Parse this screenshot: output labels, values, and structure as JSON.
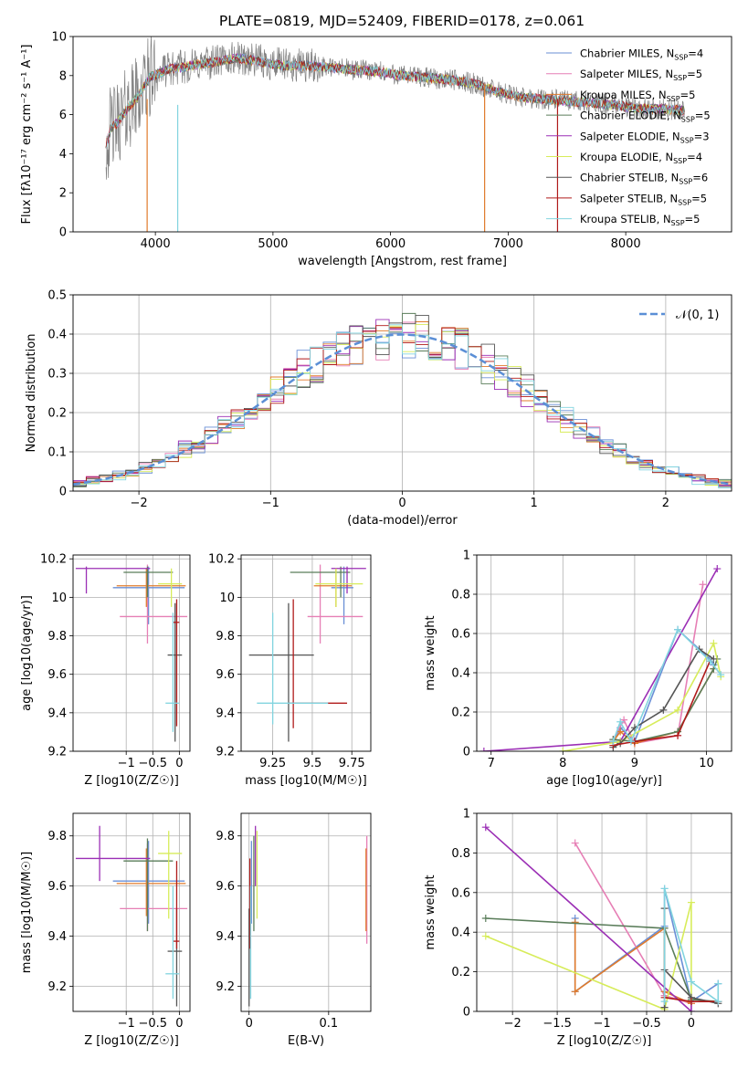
{
  "figure": {
    "title": "PLATE=0819, MJD=52409, FIBERID=0178, z=0.061",
    "series": [
      {
        "name": "Chabrier MILES",
        "nssp": "4",
        "color": "#6a8fd6"
      },
      {
        "name": "Salpeter MILES",
        "nssp": "5",
        "color": "#e67fb5"
      },
      {
        "name": "Kroupa MILES",
        "nssp": "5",
        "color": "#e07b2c"
      },
      {
        "name": "Chabrier ELODIE",
        "nssp": "5",
        "color": "#5a7d5a"
      },
      {
        "name": "Salpeter ELODIE",
        "nssp": "3",
        "color": "#9b2fb5"
      },
      {
        "name": "Kroupa ELODIE",
        "nssp": "4",
        "color": "#d7ec5a"
      },
      {
        "name": "Chabrier STELIB",
        "nssp": "6",
        "color": "#555555"
      },
      {
        "name": "Salpeter STELIB",
        "nssp": "5",
        "color": "#b01a1a"
      },
      {
        "name": "Kroupa STELIB",
        "nssp": "5",
        "color": "#82d4df"
      }
    ],
    "nssp_prefix": "N",
    "nssp_sub": "SSP"
  },
  "chart_data": [
    {
      "id": "spectrum",
      "type": "line",
      "xlabel": "wavelength [Angstrom, rest frame]",
      "ylabel": "Flux [fλ10⁻¹⁷ erg cm⁻² s⁻¹ A⁻¹]",
      "xlim": [
        3300,
        8900
      ],
      "ylim": [
        0,
        10
      ],
      "xticks": [
        4000,
        5000,
        6000,
        7000,
        8000
      ],
      "yticks": [
        0,
        2,
        4,
        6,
        8,
        10
      ],
      "grid": false,
      "legend": "top-right",
      "observed_color": "#808080",
      "data_trend": {
        "x": [
          3580,
          3620,
          3680,
          3750,
          3850,
          3950,
          4100,
          4300,
          4500,
          4700,
          4900,
          5100,
          5300,
          5500,
          5700,
          5900,
          6100,
          6300,
          6500,
          6700,
          6900,
          7100,
          7300,
          7500,
          7700,
          7900,
          8100,
          8300,
          8500
        ],
        "y": [
          4.4,
          5.3,
          5.6,
          6.2,
          6.9,
          7.9,
          8.3,
          8.5,
          8.7,
          8.9,
          8.7,
          8.5,
          8.5,
          8.4,
          8.3,
          8.2,
          8.0,
          7.9,
          7.8,
          7.6,
          7.2,
          6.9,
          6.8,
          6.7,
          6.6,
          6.5,
          6.3,
          6.3,
          6.2
        ]
      },
      "lines": [
        {
          "x": 3930,
          "y0": 0,
          "y1": 6.8,
          "color": "#e07b2c"
        },
        {
          "x": 4190,
          "y0": 0,
          "y1": 6.5,
          "color": "#82d4df"
        },
        {
          "x": 6800,
          "y0": 0,
          "y1": 7.5,
          "color": "#e07b2c"
        },
        {
          "x": 7420,
          "y0": 0,
          "y1": 6.8,
          "color": "#b01a1a"
        }
      ]
    },
    {
      "id": "residuals",
      "type": "histogram",
      "xlabel": "(data-model)/error",
      "ylabel": "Normed distribution",
      "xlim": [
        -2.5,
        2.5
      ],
      "ylim": [
        0,
        0.5
      ],
      "xticks": [
        -2,
        -1,
        0,
        1,
        2
      ],
      "yticks": [
        0.0,
        0.1,
        0.2,
        0.3,
        0.4,
        0.5
      ],
      "grid": true,
      "legend": "top-right",
      "reference_label": "𝒩(0, 1)",
      "reference_color": "#5b8fd6",
      "bin_width": 0.1
    },
    {
      "id": "age-vs-metallicity",
      "type": "errorbar",
      "xlabel": "Z [log10(Z/Z☉)]",
      "ylabel": "age [log10(age/yr)]",
      "xlim": [
        -2.0,
        0.2
      ],
      "ylim": [
        9.2,
        10.22
      ],
      "xticks": [
        -1,
        -0.5,
        0
      ],
      "yticks": [
        9.2,
        9.4,
        9.6,
        9.8,
        10.0,
        10.2
      ],
      "grid": true,
      "points": [
        {
          "series": 0,
          "x": -0.58,
          "xlo": -1.25,
          "xhi": 0.1,
          "y": 10.05,
          "ylo": 9.86,
          "yhi": 10.16
        },
        {
          "series": 1,
          "x": -0.6,
          "xlo": -1.12,
          "xhi": 0.15,
          "y": 9.9,
          "ylo": 9.76,
          "yhi": 10.17
        },
        {
          "series": 2,
          "x": -0.62,
          "xlo": -1.18,
          "xhi": 0.12,
          "y": 10.06,
          "ylo": 9.95,
          "yhi": 10.15
        },
        {
          "series": 3,
          "x": -0.6,
          "xlo": -1.05,
          "xhi": -0.12,
          "y": 10.13,
          "ylo": 10.0,
          "yhi": 10.16
        },
        {
          "series": 4,
          "x": -1.75,
          "xlo": -1.95,
          "xhi": -0.55,
          "y": 10.15,
          "ylo": 10.02,
          "yhi": 10.16
        },
        {
          "series": 5,
          "x": -0.15,
          "xlo": -0.4,
          "xhi": 0.05,
          "y": 10.07,
          "ylo": 9.95,
          "yhi": 10.15
        },
        {
          "series": 6,
          "x": -0.08,
          "xlo": -0.22,
          "xhi": 0.05,
          "y": 9.7,
          "ylo": 9.25,
          "yhi": 9.97
        },
        {
          "series": 7,
          "x": -0.05,
          "xlo": -0.12,
          "xhi": 0.0,
          "y": 9.87,
          "ylo": 9.33,
          "yhi": 9.99
        },
        {
          "series": 8,
          "x": -0.12,
          "xlo": -0.26,
          "xhi": 0.0,
          "y": 9.45,
          "ylo": 9.3,
          "yhi": 9.92
        }
      ]
    },
    {
      "id": "age-vs-mass",
      "type": "errorbar",
      "xlabel": "mass [log10(M/M☉)]",
      "ylabel": "",
      "xlim": [
        9.05,
        9.87
      ],
      "ylim": [
        9.2,
        10.22
      ],
      "xticks": [
        9.25,
        9.5,
        9.75
      ],
      "yticks": [
        9.2,
        9.4,
        9.6,
        9.8,
        10.0,
        10.2
      ],
      "grid": true,
      "points": [
        {
          "series": 0,
          "x": 9.7,
          "xlo": 9.62,
          "xhi": 9.76,
          "y": 10.05,
          "ylo": 9.86,
          "yhi": 10.16
        },
        {
          "series": 1,
          "x": 9.55,
          "xlo": 9.47,
          "xhi": 9.82,
          "y": 9.9,
          "ylo": 9.76,
          "yhi": 10.17
        },
        {
          "series": 2,
          "x": 9.65,
          "xlo": 9.51,
          "xhi": 9.75,
          "y": 10.06,
          "ylo": 9.95,
          "yhi": 10.15
        },
        {
          "series": 3,
          "x": 9.68,
          "xlo": 9.36,
          "xhi": 9.74,
          "y": 10.13,
          "ylo": 10.0,
          "yhi": 10.16
        },
        {
          "series": 4,
          "x": 9.72,
          "xlo": 9.62,
          "xhi": 9.84,
          "y": 10.15,
          "ylo": 10.02,
          "yhi": 10.16
        },
        {
          "series": 5,
          "x": 9.65,
          "xlo": 9.52,
          "xhi": 9.82,
          "y": 10.07,
          "ylo": 9.95,
          "yhi": 10.15
        },
        {
          "series": 6,
          "x": 9.35,
          "xlo": 9.1,
          "xhi": 9.51,
          "y": 9.7,
          "ylo": 9.25,
          "yhi": 9.97
        },
        {
          "series": 7,
          "x": 9.38,
          "xlo": 9.35,
          "xhi": 9.72,
          "y": 9.45,
          "ylo": 9.32,
          "yhi": 9.99
        },
        {
          "series": 8,
          "x": 9.25,
          "xlo": 9.15,
          "xhi": 9.6,
          "y": 9.45,
          "ylo": 9.34,
          "yhi": 9.92
        }
      ]
    },
    {
      "id": "weight-vs-age",
      "type": "line",
      "xlabel": "age [log10(age/yr)]",
      "ylabel": "mass weight",
      "xlim": [
        6.8,
        10.35
      ],
      "ylim": [
        0,
        1
      ],
      "xticks": [
        7,
        8,
        9,
        10
      ],
      "yticks": [
        0.0,
        0.2,
        0.4,
        0.6,
        0.8,
        1.0
      ],
      "grid": true,
      "series": [
        {
          "series": 0,
          "x": [
            8.7,
            8.8,
            9.0,
            9.6,
            10.05,
            10.1
          ],
          "y": [
            0.05,
            0.12,
            0.05,
            0.62,
            0.47,
            0.44
          ]
        },
        {
          "series": 1,
          "x": [
            8.7,
            8.85,
            9.0,
            9.6,
            9.95
          ],
          "y": [
            0.06,
            0.16,
            0.04,
            0.08,
            0.85
          ]
        },
        {
          "series": 2,
          "x": [
            8.7,
            8.8,
            9.0,
            9.6,
            10.1
          ],
          "y": [
            0.05,
            0.1,
            0.04,
            0.1,
            0.42
          ]
        },
        {
          "series": 3,
          "x": [
            8.7,
            9.0,
            9.6,
            10.1,
            10.15
          ],
          "y": [
            0.06,
            0.05,
            0.1,
            0.42,
            0.47
          ]
        },
        {
          "series": 4,
          "x": [
            6.9,
            8.8,
            10.15
          ],
          "y": [
            0.0,
            0.05,
            0.93
          ]
        },
        {
          "series": 5,
          "x": [
            8.0,
            8.8,
            9.6,
            10.1,
            10.2
          ],
          "y": [
            0.0,
            0.05,
            0.21,
            0.55,
            0.38
          ]
        },
        {
          "series": 6,
          "x": [
            8.7,
            8.8,
            9.0,
            9.4,
            9.9,
            10.1
          ],
          "y": [
            0.02,
            0.04,
            0.12,
            0.21,
            0.52,
            0.47
          ]
        },
        {
          "series": 7,
          "x": [
            8.7,
            9.0,
            9.6,
            10.05
          ],
          "y": [
            0.03,
            0.05,
            0.08,
            0.46
          ]
        },
        {
          "series": 8,
          "x": [
            8.7,
            8.8,
            8.95,
            9.6,
            10.05,
            10.2
          ],
          "y": [
            0.05,
            0.15,
            0.05,
            0.62,
            0.46,
            0.39
          ]
        }
      ]
    },
    {
      "id": "mass-vs-metallicity",
      "type": "errorbar",
      "xlabel": "Z [log10(Z/Z☉)]",
      "ylabel": "mass [log10(M/M☉)]",
      "xlim": [
        -2.0,
        0.2
      ],
      "ylim": [
        9.1,
        9.89
      ],
      "xticks": [
        -1,
        -0.5,
        0
      ],
      "yticks": [
        9.2,
        9.4,
        9.6,
        9.8
      ],
      "grid": true,
      "points": [
        {
          "series": 0,
          "x": -0.58,
          "xlo": -1.25,
          "xhi": 0.1,
          "y": 9.62,
          "ylo": 9.45,
          "yhi": 9.78
        },
        {
          "series": 1,
          "x": -0.6,
          "xlo": -1.12,
          "xhi": 0.15,
          "y": 9.51,
          "ylo": 9.42,
          "yhi": 9.77
        },
        {
          "series": 2,
          "x": -0.62,
          "xlo": -1.18,
          "xhi": 0.12,
          "y": 9.61,
          "ylo": 9.48,
          "yhi": 9.75
        },
        {
          "series": 3,
          "x": -0.6,
          "xlo": -1.05,
          "xhi": -0.12,
          "y": 9.7,
          "ylo": 9.42,
          "yhi": 9.79
        },
        {
          "series": 4,
          "x": -1.5,
          "xlo": -1.95,
          "xhi": -0.55,
          "y": 9.71,
          "ylo": 9.62,
          "yhi": 9.84
        },
        {
          "series": 5,
          "x": -0.2,
          "xlo": -0.4,
          "xhi": 0.05,
          "y": 9.73,
          "ylo": 9.47,
          "yhi": 9.82
        },
        {
          "series": 6,
          "x": -0.05,
          "xlo": -0.22,
          "xhi": 0.05,
          "y": 9.34,
          "ylo": 9.12,
          "yhi": 9.51
        },
        {
          "series": 7,
          "x": -0.05,
          "xlo": -0.12,
          "xhi": 0.0,
          "y": 9.38,
          "ylo": 9.35,
          "yhi": 9.7
        },
        {
          "series": 8,
          "x": -0.12,
          "xlo": -0.26,
          "xhi": 0.0,
          "y": 9.25,
          "ylo": 9.15,
          "yhi": 9.6
        }
      ]
    },
    {
      "id": "mass-vs-extinction",
      "type": "errorbar",
      "xlabel": "E(B-V)",
      "ylabel": "",
      "xlim": [
        -0.01,
        0.153
      ],
      "ylim": [
        9.1,
        9.89
      ],
      "xticks": [
        0.0,
        0.1
      ],
      "yticks": [
        9.2,
        9.4,
        9.6,
        9.8
      ],
      "grid": true,
      "points": [
        {
          "series": 0,
          "x": 0.003,
          "xlo": 0.003,
          "xhi": 0.003,
          "y": 9.62,
          "ylo": 9.45,
          "yhi": 9.78
        },
        {
          "series": 1,
          "x": 0.148,
          "xlo": 0.148,
          "xhi": 0.148,
          "y": 9.51,
          "ylo": 9.37,
          "yhi": 9.8
        },
        {
          "series": 2,
          "x": 0.147,
          "xlo": 0.147,
          "xhi": 0.147,
          "y": 9.61,
          "ylo": 9.42,
          "yhi": 9.75
        },
        {
          "series": 3,
          "x": 0.006,
          "xlo": 0.006,
          "xhi": 0.006,
          "y": 9.7,
          "ylo": 9.42,
          "yhi": 9.8
        },
        {
          "series": 4,
          "x": 0.008,
          "xlo": 0.008,
          "xhi": 0.008,
          "y": 9.71,
          "ylo": 9.6,
          "yhi": 9.84
        },
        {
          "series": 5,
          "x": 0.01,
          "xlo": 0.01,
          "xhi": 0.01,
          "y": 9.73,
          "ylo": 9.47,
          "yhi": 9.82
        },
        {
          "series": 6,
          "x": 0.0,
          "xlo": 0.0,
          "xhi": 0.0,
          "y": 9.34,
          "ylo": 9.12,
          "yhi": 9.51
        },
        {
          "series": 7,
          "x": 0.001,
          "xlo": 0.001,
          "xhi": 0.001,
          "y": 9.55,
          "ylo": 9.35,
          "yhi": 9.71
        },
        {
          "series": 8,
          "x": 0.002,
          "xlo": 0.002,
          "xhi": 0.002,
          "y": 9.25,
          "ylo": 9.15,
          "yhi": 9.6
        }
      ]
    },
    {
      "id": "weight-vs-metallicity",
      "type": "line",
      "xlabel": "Z [log10(Z/Z☉)]",
      "ylabel": "mass weight",
      "xlim": [
        -2.4,
        0.45
      ],
      "ylim": [
        0,
        1
      ],
      "xticks": [
        -2.0,
        -1.5,
        -1.0,
        -0.5,
        0.0
      ],
      "yticks": [
        0.0,
        0.2,
        0.4,
        0.6,
        0.8,
        1.0
      ],
      "grid": true,
      "series": [
        {
          "series": 0,
          "x": [
            -1.3,
            -1.3,
            -0.3,
            -0.3,
            0.0,
            0.3
          ],
          "y": [
            0.47,
            0.1,
            0.43,
            0.62,
            0.05,
            0.14
          ]
        },
        {
          "series": 1,
          "x": [
            -1.3,
            -0.3,
            0.0
          ],
          "y": [
            0.85,
            0.08,
            0.04
          ]
        },
        {
          "series": 2,
          "x": [
            -1.3,
            -1.3,
            -0.3,
            -0.3,
            0.0
          ],
          "y": [
            0.45,
            0.1,
            0.42,
            0.1,
            0.04
          ]
        },
        {
          "series": 3,
          "x": [
            -2.3,
            -0.3,
            0.0,
            0.3
          ],
          "y": [
            0.47,
            0.42,
            0.06,
            0.05
          ]
        },
        {
          "series": 4,
          "x": [
            -2.3,
            0.0,
            0.0
          ],
          "y": [
            0.93,
            0.0,
            0.05
          ]
        },
        {
          "series": 5,
          "x": [
            -2.3,
            -0.3,
            0.0,
            0.0
          ],
          "y": [
            0.38,
            0.01,
            0.55,
            0.05
          ]
        },
        {
          "series": 6,
          "x": [
            -0.3,
            -0.3,
            -0.3,
            0.0,
            0.3
          ],
          "y": [
            0.02,
            0.52,
            0.21,
            0.07,
            0.04
          ]
        },
        {
          "series": 7,
          "x": [
            -0.3,
            0.0,
            0.3
          ],
          "y": [
            0.07,
            0.05,
            0.05
          ]
        },
        {
          "series": 8,
          "x": [
            -0.3,
            -0.3,
            0.0,
            0.3,
            0.3
          ],
          "y": [
            0.05,
            0.62,
            0.15,
            0.05,
            0.14
          ]
        }
      ]
    }
  ]
}
